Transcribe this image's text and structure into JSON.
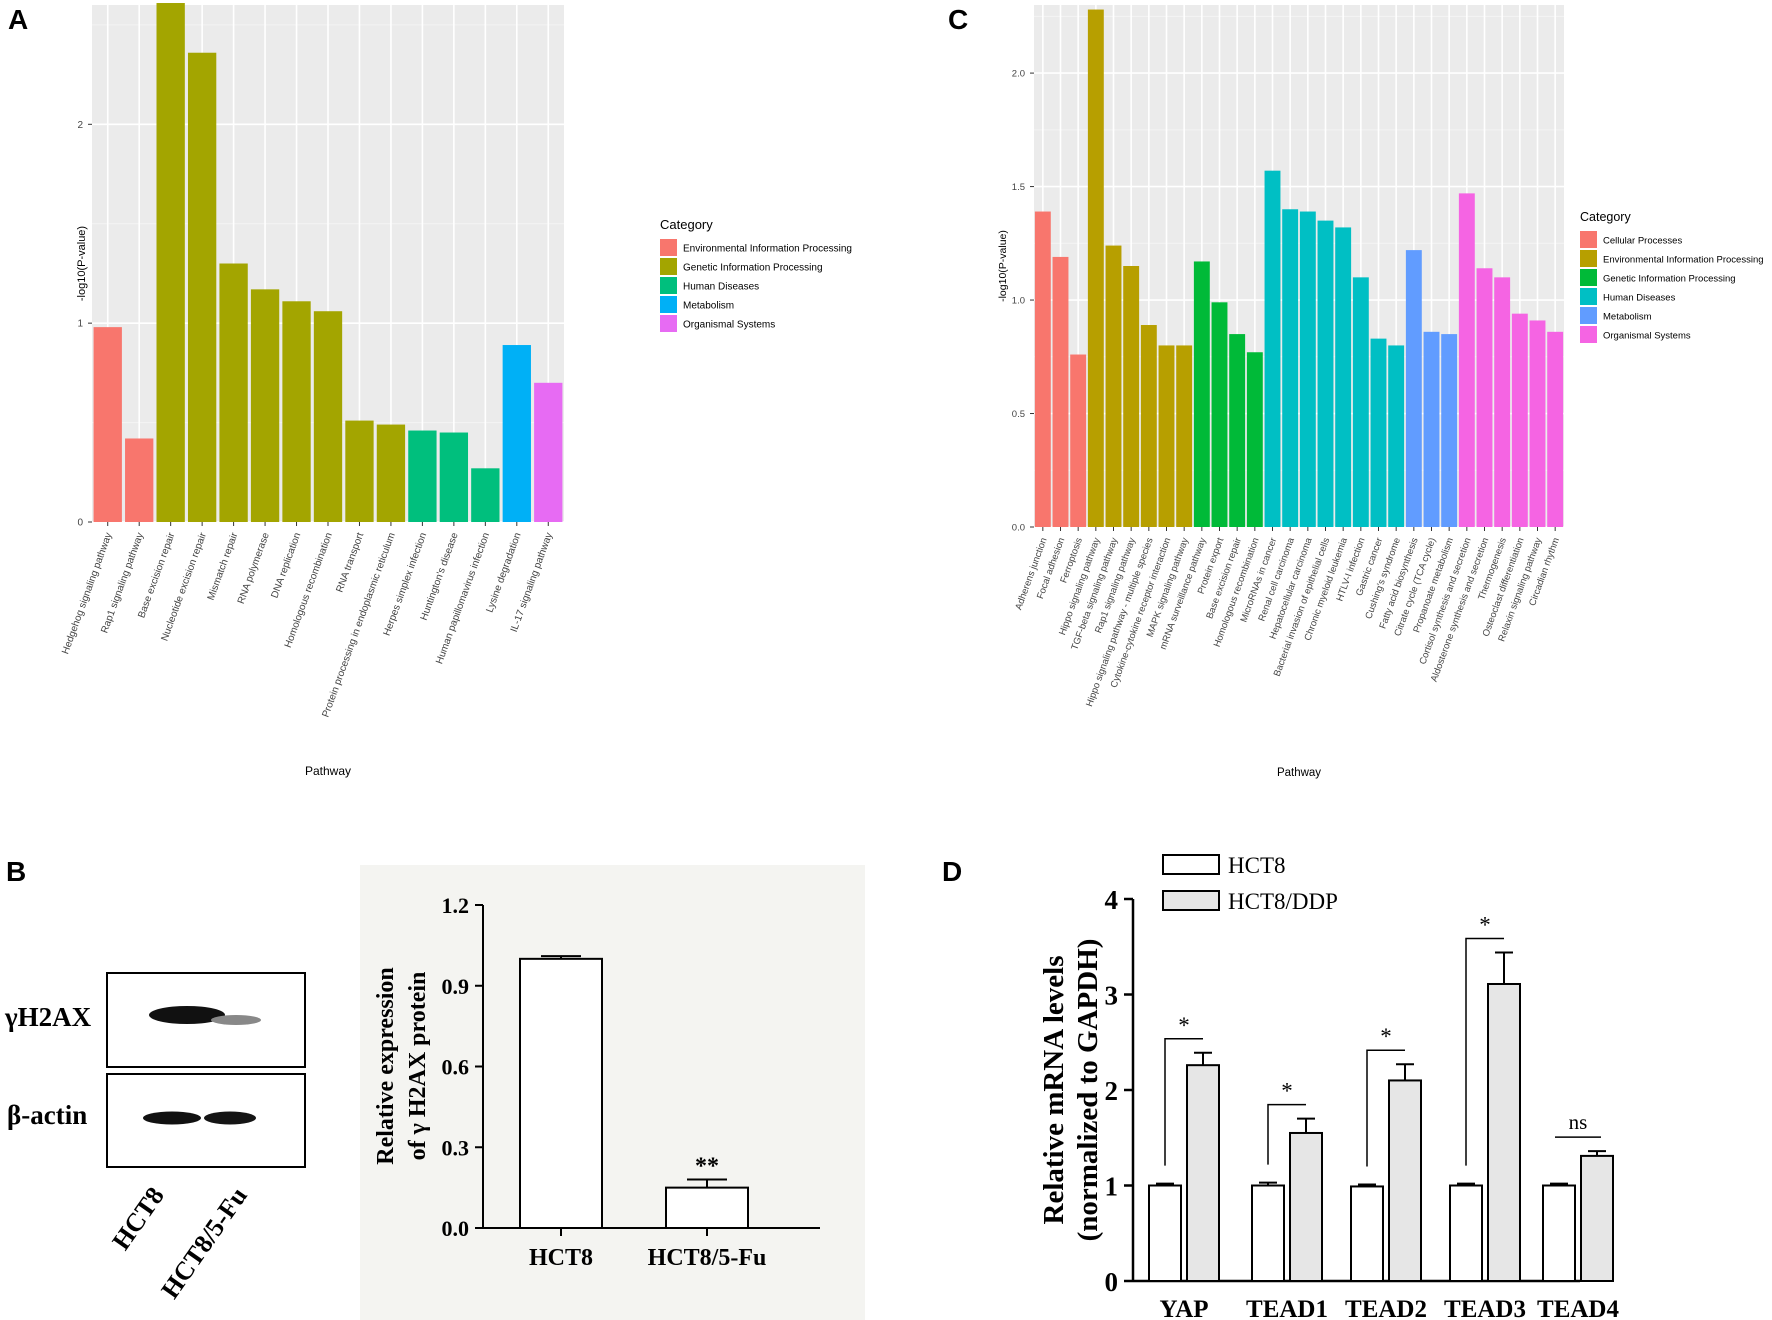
{
  "panel_labels": {
    "a": "A",
    "b": "B",
    "c": "C",
    "d": "D"
  },
  "colors": {
    "Environmental Information Processing": "#f8766d",
    "Genetic Information Processing": "#a3a500",
    "Human Diseases": "#00bf7d",
    "Metabolism": "#00b0f6",
    "Organismal Systems": "#e76bf3",
    "Cellular Processes": "#f8766d",
    "Environmental Information Processing C": "#b79f00",
    "Genetic Information Processing C": "#00ba38",
    "Human Diseases C": "#00bfc4",
    "Metabolism C": "#619cff",
    "Organismal Systems C": "#f564e3",
    "panel_bg": "#ebebeb",
    "bar_gray": "#e6e6e6"
  },
  "chart_data": [
    {
      "id": "A",
      "type": "bar",
      "ylabel": "-log10(P-value)",
      "xlabel": "Pathway",
      "ylim": [
        0,
        2.6
      ],
      "yticks": [
        "0",
        "1",
        "2"
      ],
      "legend_title": "Category",
      "legend": [
        "Environmental Information Processing",
        "Genetic Information Processing",
        "Human Diseases",
        "Metabolism",
        "Organismal Systems"
      ],
      "categories": [
        "Hedgehog signaling pathway",
        "Rap1 signaling pathway",
        "Base excision repair",
        "Nucleotide excision repair",
        "Mismatch repair",
        "RNA polymerase",
        "DNA replication",
        "Homologous recombination",
        "RNA transport",
        "Protein processing in endoplasmic reticulum",
        "Herpes simplex infection",
        "Huntington's disease",
        "Human papillomavirus infection",
        "Lysine degradation",
        "IL-17 signaling pathway"
      ],
      "values": [
        0.98,
        0.42,
        2.61,
        2.36,
        1.3,
        1.17,
        1.11,
        1.06,
        0.51,
        0.49,
        0.46,
        0.45,
        0.27,
        0.89,
        0.7
      ],
      "groups": [
        0,
        0,
        1,
        1,
        1,
        1,
        1,
        1,
        1,
        1,
        2,
        2,
        2,
        3,
        4
      ]
    },
    {
      "id": "C",
      "type": "bar",
      "ylabel": "-log10(P-value)",
      "xlabel": "Pathway",
      "ylim": [
        0,
        2.3
      ],
      "yticks": [
        "0.0",
        "0.5",
        "1.0",
        "1.5",
        "2.0"
      ],
      "legend_title": "Category",
      "legend": [
        "Cellular Processes",
        "Environmental Information Processing",
        "Genetic Information Processing",
        "Human Diseases",
        "Metabolism",
        "Organismal Systems"
      ],
      "categories": [
        "Adherens junction",
        "Focal adhesion",
        "Ferroptosis",
        "Hippo signaling pathway",
        "TGF-beta signaling pathway",
        "Rap1 signaling pathway",
        "Hippo signaling pathway - multiple species",
        "Cytokine-cytokine receptor interaction",
        "MAPK signaling pathway",
        "mRNA surveillance pathway",
        "Protein export",
        "Base excision repair",
        "Homologous recombination",
        "MicroRNAs in cancer",
        "Renal cell carcinoma",
        "Hepatocellular carcinoma",
        "Bacterial invasion of epithelial cells",
        "Chronic myeloid leukemia",
        "HTLV-I infection",
        "Gastric cancer",
        "Cushing's syndrome",
        "Fatty acid biosynthesis",
        "Citrate cycle (TCA cycle)",
        "Propanoate metabolism",
        "Cortisol synthesis and secretion",
        "Aldosterone synthesis and secretion",
        "Thermogenesis",
        "Osteoclast differentiation",
        "Relaxin signaling pathway",
        "Circadian rhythm"
      ],
      "values": [
        1.39,
        1.19,
        0.76,
        2.28,
        1.24,
        1.15,
        0.89,
        0.8,
        0.8,
        1.17,
        0.99,
        0.85,
        0.77,
        1.57,
        1.4,
        1.39,
        1.35,
        1.32,
        1.1,
        0.83,
        0.8,
        1.22,
        0.86,
        0.85,
        1.47,
        1.14,
        1.1,
        0.94,
        0.91,
        0.86
      ],
      "groups": [
        0,
        0,
        0,
        1,
        1,
        1,
        1,
        1,
        1,
        2,
        2,
        2,
        2,
        3,
        3,
        3,
        3,
        3,
        3,
        3,
        3,
        4,
        4,
        4,
        5,
        5,
        5,
        5,
        5,
        5
      ]
    },
    {
      "id": "B",
      "type": "bar",
      "ylabel": "Relative expression of γ H2AX protein",
      "ylabel_lines": [
        "Relative expression",
        "of γ H2AX protein"
      ],
      "ylim": [
        0,
        1.2
      ],
      "yticks": [
        "0.0",
        "0.3",
        "0.6",
        "0.9",
        "1.2"
      ],
      "categories": [
        "HCT8",
        "HCT8/5-Fu"
      ],
      "values": [
        1.0,
        0.15
      ],
      "errors": [
        0.01,
        0.03
      ],
      "annotations": [
        "",
        "**"
      ]
    },
    {
      "id": "D",
      "type": "bar",
      "ylabel": "Relative mRNA levels (normalized to GAPDH)",
      "ylabel_lines": [
        "Relative mRNA levels",
        "(normalized to GAPDH)"
      ],
      "ylim": [
        0,
        4
      ],
      "yticks": [
        "0",
        "1",
        "2",
        "3",
        "4"
      ],
      "categories": [
        "YAP",
        "TEAD1",
        "TEAD2",
        "TEAD3",
        "TEAD4"
      ],
      "series": [
        {
          "name": "HCT8",
          "values": [
            1.0,
            1.0,
            0.99,
            1.0,
            1.0
          ],
          "errors": [
            0.02,
            0.03,
            0.02,
            0.02,
            0.02
          ]
        },
        {
          "name": "HCT8/DDP",
          "values": [
            2.26,
            1.55,
            2.1,
            3.11,
            1.31
          ],
          "errors": [
            0.13,
            0.15,
            0.17,
            0.33,
            0.05
          ]
        }
      ],
      "significance": [
        "*",
        "*",
        "*",
        "*",
        "ns"
      ]
    }
  ],
  "western_blot": {
    "rows": [
      "γH2AX",
      "β-actin"
    ],
    "lanes": [
      "HCT8",
      "HCT8/5-Fu"
    ]
  }
}
